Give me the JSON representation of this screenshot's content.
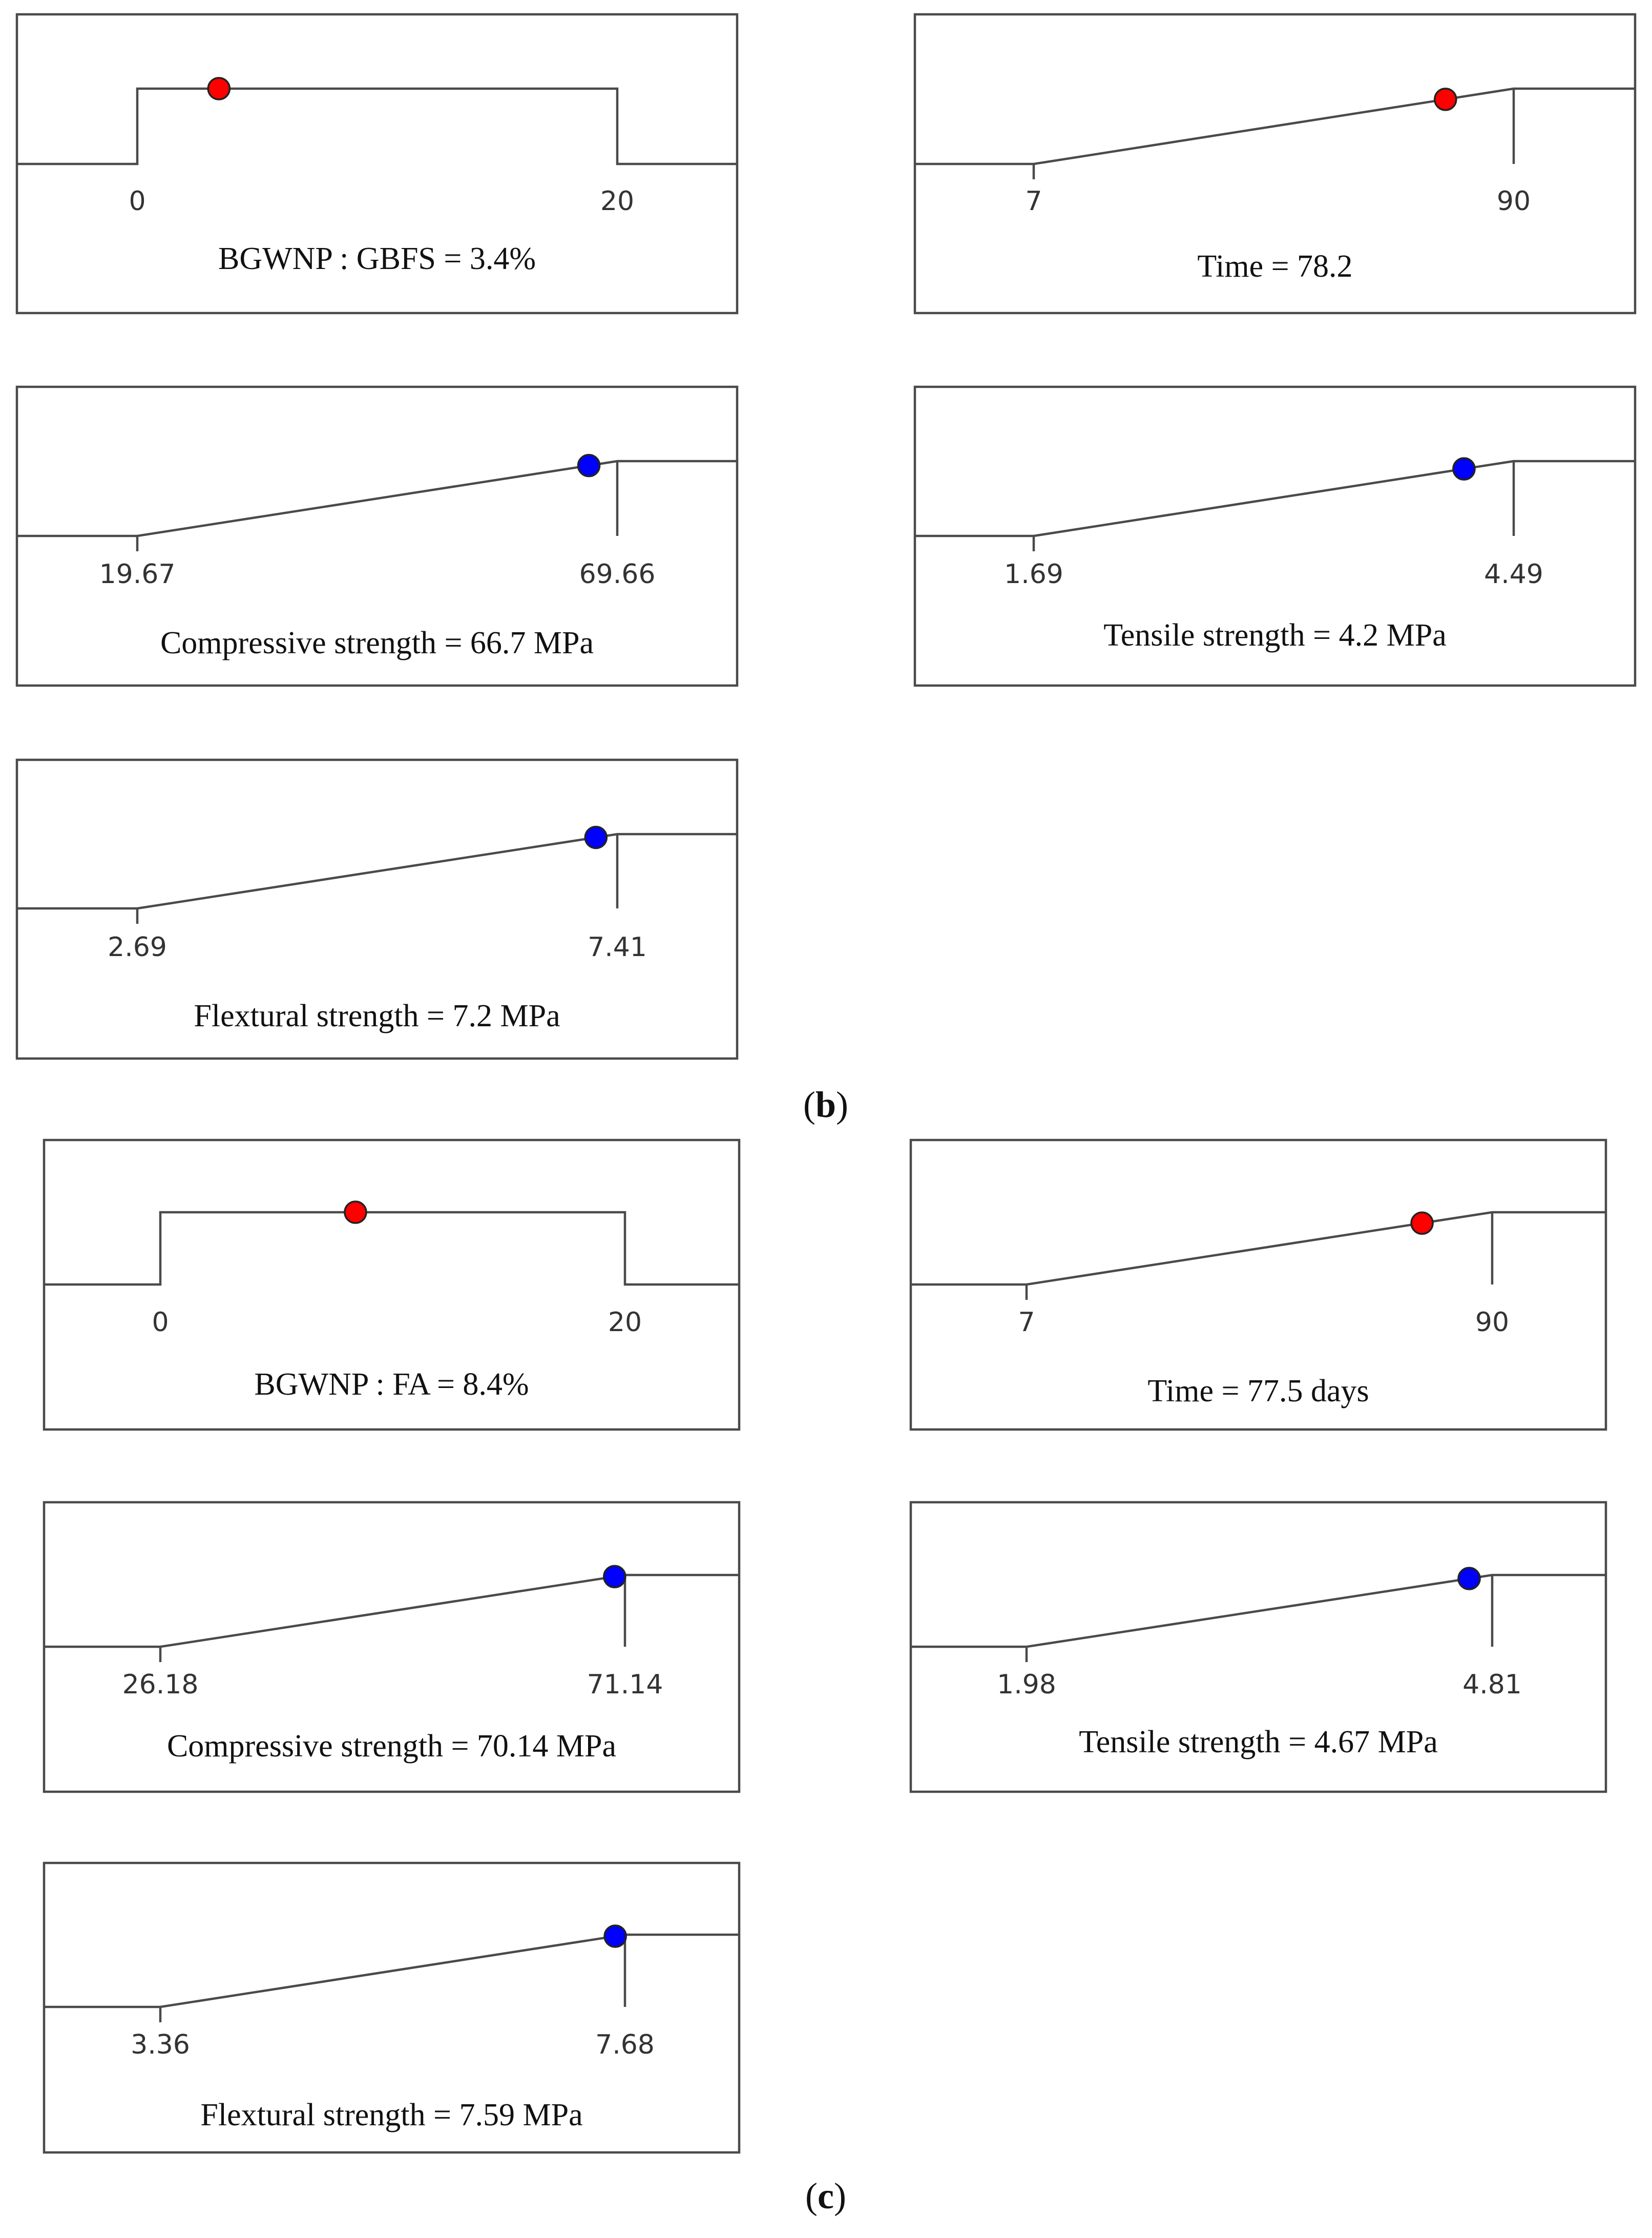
{
  "colors": {
    "factor_dot": "#ff0000",
    "response_dot": "#0000ff",
    "line": "#4a4a4a"
  },
  "panel_labels": {
    "b": "b",
    "c": "c"
  },
  "chart_data": [
    {
      "panel": "b",
      "type": "desirability-plateau",
      "role": "factor",
      "caption": "BGWNP : GBFS = 3.4%",
      "ticks": [
        "0",
        "20"
      ],
      "range": [
        0,
        20
      ],
      "value": 3.4
    },
    {
      "panel": "b",
      "type": "desirability-ramp",
      "role": "factor",
      "caption": "Time = 78.2",
      "ticks": [
        "7",
        "90"
      ],
      "range": [
        7,
        90
      ],
      "value": 78.2
    },
    {
      "panel": "b",
      "type": "desirability-ramp",
      "role": "response",
      "caption": "Compressive strength = 66.7 MPa",
      "ticks": [
        "19.67",
        "69.66"
      ],
      "range": [
        19.67,
        69.66
      ],
      "value": 66.7
    },
    {
      "panel": "b",
      "type": "desirability-ramp",
      "role": "response",
      "caption": "Tensile strength = 4.2 MPa",
      "ticks": [
        "1.69",
        "4.49"
      ],
      "range": [
        1.69,
        4.49
      ],
      "value": 4.2
    },
    {
      "panel": "b",
      "type": "desirability-ramp",
      "role": "response",
      "caption": "Flextural strength = 7.2 MPa",
      "ticks": [
        "2.69",
        "7.41"
      ],
      "range": [
        2.69,
        7.41
      ],
      "value": 7.2
    },
    {
      "panel": "c",
      "type": "desirability-plateau",
      "role": "factor",
      "caption": "BGWNP : FA = 8.4%",
      "ticks": [
        "0",
        "20"
      ],
      "range": [
        0,
        20
      ],
      "value": 8.4
    },
    {
      "panel": "c",
      "type": "desirability-ramp",
      "role": "factor",
      "caption": "Time = 77.5 days",
      "ticks": [
        "7",
        "90"
      ],
      "range": [
        7,
        90
      ],
      "value": 77.5
    },
    {
      "panel": "c",
      "type": "desirability-ramp",
      "role": "response",
      "caption": "Compressive strength = 70.14 MPa",
      "ticks": [
        "26.18",
        "71.14"
      ],
      "range": [
        26.18,
        71.14
      ],
      "value": 70.14
    },
    {
      "panel": "c",
      "type": "desirability-ramp",
      "role": "response",
      "caption": "Tensile strength = 4.67 MPa",
      "ticks": [
        "1.98",
        "4.81"
      ],
      "range": [
        1.98,
        4.81
      ],
      "value": 4.67
    },
    {
      "panel": "c",
      "type": "desirability-ramp",
      "role": "response",
      "caption": "Flextural strength = 7.59 MPa",
      "ticks": [
        "3.36",
        "7.68"
      ],
      "range": [
        3.36,
        7.68
      ],
      "value": 7.59
    }
  ]
}
